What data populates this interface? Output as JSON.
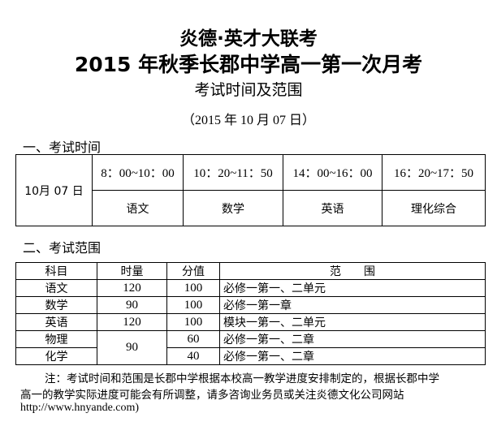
{
  "header": {
    "title_line1": "炎德·英才大联考",
    "title_line2": "2015 年秋季长郡中学高一第一次月考",
    "title_line3": "考试时间及范围",
    "date_line": "（2015 年 10 月 07 日）"
  },
  "section1": {
    "heading": "一、考试时间",
    "date": "10月 07 日",
    "slots": [
      {
        "time": "8：00~10：00",
        "subject": "语文"
      },
      {
        "time": "10：20~11：50",
        "subject": "数学"
      },
      {
        "time": "14：00~16：00",
        "subject": "英语"
      },
      {
        "time": "16：20~17：50",
        "subject": "理化综合"
      }
    ]
  },
  "section2": {
    "heading": "二、考试范围",
    "columns": [
      "科目",
      "时量",
      "分值",
      "范　　围"
    ],
    "rows": [
      {
        "subject": "语文",
        "duration": "120",
        "score": "100",
        "scope": "必修一第一、二单元"
      },
      {
        "subject": "数学",
        "duration": "90",
        "score": "100",
        "scope": "必修一第一章"
      },
      {
        "subject": "英语",
        "duration": "120",
        "score": "100",
        "scope": "模块一第一、二单元"
      },
      {
        "subject": "物理",
        "duration": "90",
        "score": "60",
        "scope": "必修一第一、二章"
      },
      {
        "subject": "化学",
        "score": "40",
        "scope": "必修一第一、二章"
      }
    ]
  },
  "note": {
    "line1": "注：考试时间和范围是长郡中学根据本校高一教学进度安排制定的，根据长郡中学",
    "line2": "高一的教学实际进度可能会有所调整，请多咨询业务员或关注炎德文化公司网站",
    "line3": "http://www.hnyande.com)"
  }
}
